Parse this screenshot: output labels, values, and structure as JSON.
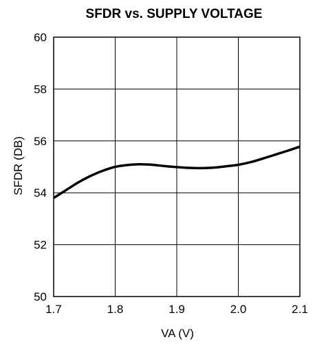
{
  "chart_data": {
    "type": "line",
    "title": "SFDR vs. SUPPLY VOLTAGE",
    "xlabel": "VA (V)",
    "ylabel": "SFDR (DB)",
    "xlim": [
      1.7,
      2.1
    ],
    "ylim": [
      50,
      60
    ],
    "x_ticks": [
      "1.7",
      "1.8",
      "1.9",
      "2.0",
      "2.1"
    ],
    "y_ticks": [
      "50",
      "52",
      "54",
      "56",
      "58",
      "60"
    ],
    "grid": true,
    "series": [
      {
        "x": [
          1.7,
          1.72,
          1.74,
          1.76,
          1.78,
          1.8,
          1.82,
          1.84,
          1.86,
          1.88,
          1.9,
          1.92,
          1.94,
          1.96,
          1.98,
          2.0,
          2.02,
          2.04,
          2.06,
          2.08,
          2.1
        ],
        "y": [
          53.8,
          54.1,
          54.4,
          54.65,
          54.85,
          55.0,
          55.07,
          55.1,
          55.08,
          55.03,
          54.99,
          54.96,
          54.95,
          54.97,
          55.02,
          55.08,
          55.18,
          55.32,
          55.47,
          55.62,
          55.78
        ],
        "color": "#000000"
      }
    ]
  }
}
